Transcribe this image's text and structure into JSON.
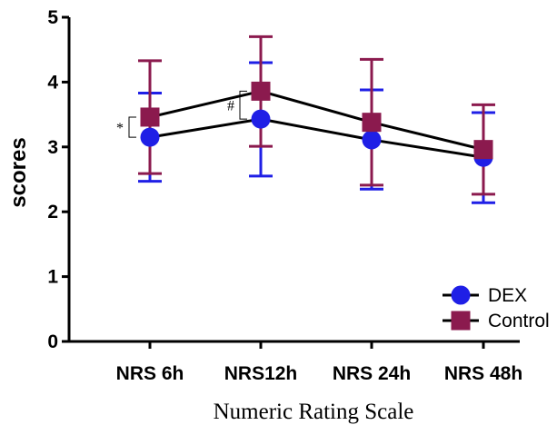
{
  "chart_data": {
    "type": "line",
    "title": "",
    "xlabel": "Numeric Rating Scale",
    "ylabel": "scores",
    "categories": [
      "NRS 6h",
      "NRS12h",
      "NRS 24h",
      "NRS 48h"
    ],
    "ylim": [
      0,
      5
    ],
    "yticks": [
      "0",
      "1",
      "2",
      "3",
      "4",
      "5"
    ],
    "grid": false,
    "legend_position": "bottom-right",
    "series": [
      {
        "name": "DEX",
        "marker": "circle",
        "color": "#1f1fe6",
        "values": [
          3.15,
          3.43,
          3.11,
          2.84
        ],
        "err_upper": [
          3.83,
          4.3,
          3.88,
          3.53
        ],
        "err_lower": [
          2.47,
          2.55,
          2.35,
          2.14
        ]
      },
      {
        "name": "Control",
        "marker": "square",
        "color": "#8b1a4e",
        "values": [
          3.46,
          3.86,
          3.38,
          2.96
        ],
        "err_upper": [
          4.33,
          4.7,
          4.35,
          3.65
        ],
        "err_lower": [
          2.59,
          3.01,
          2.41,
          2.27
        ]
      }
    ],
    "annotations": [
      {
        "text": "*",
        "category_index": 0
      },
      {
        "text": "#",
        "category_index": 1
      }
    ]
  }
}
